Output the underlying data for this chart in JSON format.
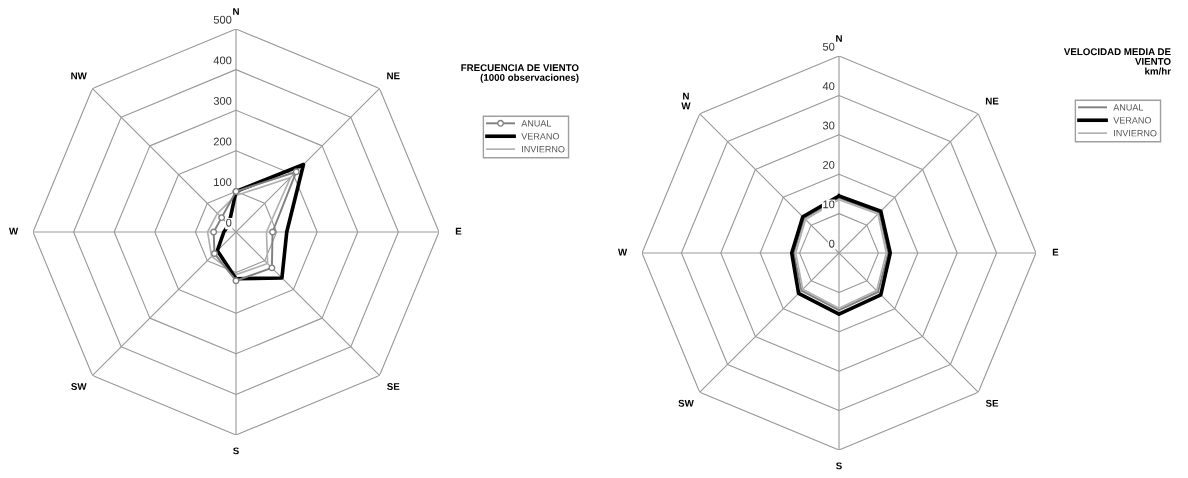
{
  "chart_data": [
    {
      "type": "radar",
      "title": "FRECUENCIA DE VIENTO\n(1000 observaciones)",
      "categories": [
        "N",
        "NE",
        "E",
        "SE",
        "S",
        "SW",
        "W",
        "NW"
      ],
      "ylim": [
        0,
        500
      ],
      "yticks": [
        0,
        100,
        200,
        300,
        400,
        500
      ],
      "grid": true,
      "legend": "right",
      "series": [
        {
          "name": "ANUAL",
          "color": "#808080",
          "marker": "circle",
          "values": [
            100,
            210,
            90,
            125,
            120,
            75,
            55,
            50
          ]
        },
        {
          "name": "VERANO",
          "color": "#000000",
          "marker": "none",
          "values": [
            100,
            235,
            125,
            160,
            115,
            65,
            30,
            25
          ]
        },
        {
          "name": "INVIERNO",
          "color": "#b0b0b0",
          "marker": "none",
          "values": [
            90,
            190,
            75,
            110,
            105,
            85,
            70,
            65
          ]
        }
      ]
    },
    {
      "type": "radar",
      "title": "VELOCIDAD MEDIA DE\nVIENTO\nkm/hr",
      "categories": [
        "N",
        "NE",
        "E",
        "SE",
        "S",
        "SW",
        "W",
        "N\nW"
      ],
      "ylim": [
        0,
        50
      ],
      "yticks": [
        0,
        10,
        20,
        30,
        40,
        50
      ],
      "grid": true,
      "legend": "right",
      "series": [
        {
          "name": "ANUAL",
          "color": "#808080",
          "marker": "none",
          "values": [
            14,
            14.5,
            12.5,
            14,
            14.5,
            13.5,
            11.5,
            12.5
          ]
        },
        {
          "name": "VERANO",
          "color": "#000000",
          "marker": "none",
          "values": [
            14.5,
            15,
            13,
            15,
            15.5,
            14.5,
            12,
            13
          ]
        },
        {
          "name": "INVIERNO",
          "color": "#b0b0b0",
          "marker": "none",
          "values": [
            13.5,
            14,
            12,
            13.5,
            14,
            13,
            11,
            12
          ]
        }
      ]
    }
  ]
}
